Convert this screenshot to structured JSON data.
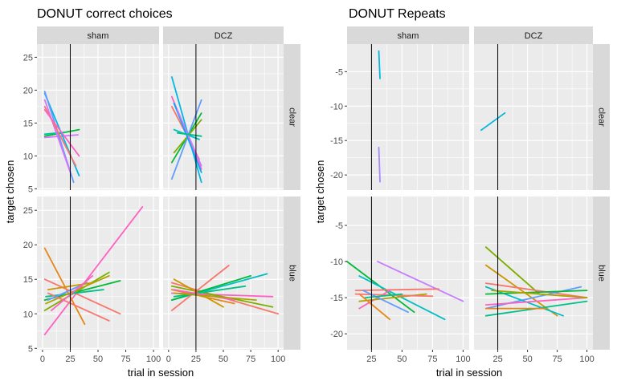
{
  "chart_data": [
    {
      "type": "line",
      "title": "DONUT correct choices",
      "xlabel": "trial in session",
      "ylabel": "target chosen",
      "facet_cols": [
        "sham",
        "DCZ"
      ],
      "facet_rows": [
        "clear",
        "blue"
      ],
      "xlim": [
        -5,
        105
      ],
      "x_ticks": [
        0,
        25,
        50,
        75,
        100
      ],
      "panel_ylims": [
        [
          4.8,
          27
        ],
        [
          4.8,
          27
        ]
      ],
      "y_ticks": [
        [
          5,
          10,
          15,
          20,
          25
        ],
        [
          5,
          10,
          15,
          20,
          25
        ]
      ],
      "vline_x": 25,
      "panels": [
        {
          "row": "clear",
          "col": "sham",
          "segments": [
            {
              "x": [
                2,
                33
              ],
              "y": [
                13.0,
                14.0
              ],
              "color": "#00BA38"
            },
            {
              "x": [
                2,
                20
              ],
              "y": [
                13.3,
                13.6
              ],
              "color": "#00C19F"
            },
            {
              "x": [
                2,
                32
              ],
              "y": [
                12.8,
                13.2
              ],
              "color": "#DB72FB"
            },
            {
              "x": [
                2,
                33
              ],
              "y": [
                19.5,
                7.0
              ],
              "color": "#00B9E3"
            },
            {
              "x": [
                2,
                28
              ],
              "y": [
                19.8,
                6.0
              ],
              "color": "#619CFF"
            },
            {
              "x": [
                2,
                25
              ],
              "y": [
                18.5,
                7.5
              ],
              "color": "#DB72FB"
            },
            {
              "x": [
                2,
                30
              ],
              "y": [
                17.5,
                8.5
              ],
              "color": "#F8766D"
            },
            {
              "x": [
                2,
                33
              ],
              "y": [
                17.0,
                10.0
              ],
              "color": "#FF61C3"
            }
          ]
        },
        {
          "row": "clear",
          "col": "DCZ",
          "segments": [
            {
              "x": [
                3,
                30
              ],
              "y": [
                22.0,
                6.0
              ],
              "color": "#00B9E3"
            },
            {
              "x": [
                3,
                30
              ],
              "y": [
                19.0,
                8.0
              ],
              "color": "#FF61C3"
            },
            {
              "x": [
                3,
                28
              ],
              "y": [
                17.5,
                9.5
              ],
              "color": "#F8766D"
            },
            {
              "x": [
                3,
                30
              ],
              "y": [
                9.0,
                16.5
              ],
              "color": "#00BA38"
            },
            {
              "x": [
                3,
                30
              ],
              "y": [
                6.5,
                18.5
              ],
              "color": "#619CFF"
            },
            {
              "x": [
                5,
                28
              ],
              "y": [
                14.0,
                12.5
              ],
              "color": "#00BFC4"
            },
            {
              "x": [
                5,
                30
              ],
              "y": [
                10.5,
                15.5
              ],
              "color": "#7CAE00"
            },
            {
              "x": [
                5,
                30
              ],
              "y": [
                18.0,
                7.5
              ],
              "color": "#00A9FF"
            },
            {
              "x": [
                8,
                30
              ],
              "y": [
                17.0,
                8.5
              ],
              "color": "#C77CFF"
            },
            {
              "x": [
                8,
                30
              ],
              "y": [
                13.5,
                13.0
              ],
              "color": "#00C08B"
            }
          ]
        },
        {
          "row": "blue",
          "col": "sham",
          "segments": [
            {
              "x": [
                2,
                90
              ],
              "y": [
                7.0,
                25.5
              ],
              "color": "#FF61C3"
            },
            {
              "x": [
                2,
                38
              ],
              "y": [
                19.5,
                8.5
              ],
              "color": "#E68613"
            },
            {
              "x": [
                2,
                70
              ],
              "y": [
                15.0,
                10.0
              ],
              "color": "#F8766D"
            },
            {
              "x": [
                2,
                70
              ],
              "y": [
                12.0,
                14.8
              ],
              "color": "#00BA38"
            },
            {
              "x": [
                2,
                60
              ],
              "y": [
                10.5,
                16.0
              ],
              "color": "#7CAE00"
            },
            {
              "x": [
                3,
                55
              ],
              "y": [
                12.5,
                13.5
              ],
              "color": "#00C08B"
            },
            {
              "x": [
                3,
                60
              ],
              "y": [
                11.5,
                15.5
              ],
              "color": "#ABA300"
            },
            {
              "x": [
                5,
                60
              ],
              "y": [
                13.0,
                9.0
              ],
              "color": "#F8766D"
            },
            {
              "x": [
                5,
                40
              ],
              "y": [
                12.0,
                14.5
              ],
              "color": "#619CFF"
            },
            {
              "x": [
                5,
                45
              ],
              "y": [
                13.5,
                14.5
              ],
              "color": "#CD9600"
            },
            {
              "x": [
                8,
                45
              ],
              "y": [
                10.5,
                15.5
              ],
              "color": "#FF61C3"
            }
          ]
        },
        {
          "row": "blue",
          "col": "DCZ",
          "segments": [
            {
              "x": [
                3,
                100
              ],
              "y": [
                14.5,
                10.0
              ],
              "color": "#F8766D"
            },
            {
              "x": [
                3,
                95
              ],
              "y": [
                13.0,
                12.5
              ],
              "color": "#FF61C3"
            },
            {
              "x": [
                3,
                90
              ],
              "y": [
                12.0,
                15.8
              ],
              "color": "#00BFC4"
            },
            {
              "x": [
                3,
                95
              ],
              "y": [
                14.0,
                11.0
              ],
              "color": "#7CAE00"
            },
            {
              "x": [
                3,
                60
              ],
              "y": [
                13.5,
                11.5
              ],
              "color": "#E68613"
            },
            {
              "x": [
                3,
                75
              ],
              "y": [
                12.0,
                15.5
              ],
              "color": "#00BA38"
            },
            {
              "x": [
                3,
                55
              ],
              "y": [
                10.5,
                17.0
              ],
              "color": "#F8766D"
            },
            {
              "x": [
                5,
                50
              ],
              "y": [
                15.0,
                11.0
              ],
              "color": "#CD9600"
            },
            {
              "x": [
                5,
                70
              ],
              "y": [
                12.5,
                14.0
              ],
              "color": "#00C08B"
            },
            {
              "x": [
                5,
                60
              ],
              "y": [
                13.5,
                12.0
              ],
              "color": "#FF61C3"
            },
            {
              "x": [
                5,
                80
              ],
              "y": [
                13.0,
                12.0
              ],
              "color": "#ABA300"
            }
          ]
        }
      ]
    },
    {
      "type": "line",
      "title": "DONUT Repeats",
      "xlabel": "trial in session",
      "ylabel": "target chosen",
      "facet_cols": [
        "sham",
        "DCZ"
      ],
      "facet_rows": [
        "clear",
        "blue"
      ],
      "xlim": [
        5,
        105
      ],
      "x_ticks": [
        25,
        50,
        75,
        100
      ],
      "panel_ylims": [
        [
          -22.2,
          -1.0
        ],
        [
          -22.2,
          -1.0
        ]
      ],
      "y_ticks": [
        [
          -20,
          -15,
          -10,
          -5
        ],
        [
          -20,
          -15,
          -10,
          -5
        ]
      ],
      "vline_x": 25,
      "panels": [
        {
          "row": "clear",
          "col": "sham",
          "segments": [
            {
              "x": [
                31,
                32
              ],
              "y": [
                -2.0,
                -6.0
              ],
              "color": "#00B9E3"
            },
            {
              "x": [
                31,
                32
              ],
              "y": [
                -16.0,
                -21.0
              ],
              "color": "#A58AFF"
            }
          ]
        },
        {
          "row": "clear",
          "col": "DCZ",
          "segments": [
            {
              "x": [
                11,
                31
              ],
              "y": [
                -13.5,
                -11.0
              ],
              "color": "#00B9E3"
            }
          ]
        },
        {
          "row": "blue",
          "col": "sham",
          "segments": [
            {
              "x": [
                5,
                60
              ],
              "y": [
                -10.0,
                -17.0
              ],
              "color": "#00BA38"
            },
            {
              "x": [
                30,
                100
              ],
              "y": [
                -10.0,
                -15.5
              ],
              "color": "#C77CFF"
            },
            {
              "x": [
                15,
                85
              ],
              "y": [
                -12.0,
                -18.0
              ],
              "color": "#00BFC4"
            },
            {
              "x": [
                12,
                80
              ],
              "y": [
                -14.0,
                -13.8
              ],
              "color": "#F8766D"
            },
            {
              "x": [
                15,
                40
              ],
              "y": [
                -16.5,
                -14.0
              ],
              "color": "#FF61C3"
            },
            {
              "x": [
                15,
                70
              ],
              "y": [
                -15.5,
                -14.5
              ],
              "color": "#ABA300"
            },
            {
              "x": [
                15,
                40
              ],
              "y": [
                -14.5,
                -18.0
              ],
              "color": "#E68613"
            },
            {
              "x": [
                12,
                75
              ],
              "y": [
                -14.5,
                -14.8
              ],
              "color": "#F8766D"
            },
            {
              "x": [
                18,
                55
              ],
              "y": [
                -14.0,
                -17.0
              ],
              "color": "#619CFF"
            },
            {
              "x": [
                20,
                50
              ],
              "y": [
                -15.0,
                -14.5
              ],
              "color": "#00C08B"
            }
          ]
        },
        {
          "row": "blue",
          "col": "DCZ",
          "segments": [
            {
              "x": [
                15,
                60
              ],
              "y": [
                -8.0,
                -14.5
              ],
              "color": "#7CAE00"
            },
            {
              "x": [
                15,
                75
              ],
              "y": [
                -10.5,
                -17.5
              ],
              "color": "#CD9600"
            },
            {
              "x": [
                15,
                100
              ],
              "y": [
                -17.5,
                -15.5
              ],
              "color": "#00C08B"
            },
            {
              "x": [
                15,
                100
              ],
              "y": [
                -13.0,
                -15.0
              ],
              "color": "#F8766D"
            },
            {
              "x": [
                15,
                95
              ],
              "y": [
                -16.5,
                -13.5
              ],
              "color": "#619CFF"
            },
            {
              "x": [
                15,
                80
              ],
              "y": [
                -13.5,
                -17.5
              ],
              "color": "#00BFC4"
            },
            {
              "x": [
                15,
                100
              ],
              "y": [
                -16.0,
                -15.0
              ],
              "color": "#FF61C3"
            },
            {
              "x": [
                15,
                100
              ],
              "y": [
                -14.5,
                -14.0
              ],
              "color": "#00BA38"
            },
            {
              "x": [
                15,
                65
              ],
              "y": [
                -16.5,
                -16.5
              ],
              "color": "#E68613"
            },
            {
              "x": [
                20,
                100
              ],
              "y": [
                -14.0,
                -15.0
              ],
              "color": "#ABA300"
            }
          ]
        }
      ]
    }
  ]
}
